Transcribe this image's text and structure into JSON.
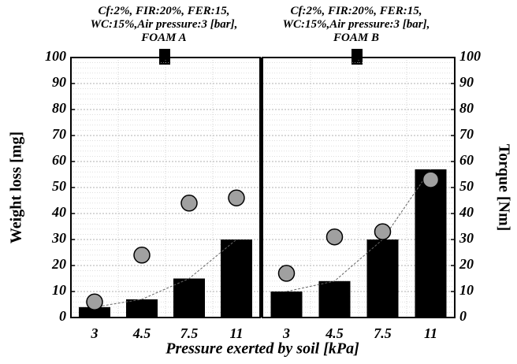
{
  "chart_data": [
    {
      "type": "bar",
      "title": "Cf:2%, FIR:20%, FER:15, WC:15%,Air pressure:3 [bar], FOAM A",
      "categories": [
        "3",
        "4.5",
        "7.5",
        "11"
      ],
      "series": [
        {
          "color": "#000000",
          "values": [
            4,
            7,
            15,
            30
          ]
        },
        {
          "color": "#a0a0a0",
          "marker": "circle",
          "values": [
            6,
            24,
            44,
            46
          ]
        }
      ],
      "ylim": [
        0,
        100
      ],
      "yticks": [
        0,
        10,
        20,
        30,
        40,
        50,
        60,
        70,
        80,
        90,
        100
      ],
      "grid": true,
      "ylabel": "Weight loss [mg]",
      "xlabel": "Pressure exerted by soil [kPa]"
    },
    {
      "type": "bar",
      "title": "Cf:2%, FIR:20%, FER:15, WC:15%,Air pressure:3 [bar], FOAM B",
      "categories": [
        "3",
        "4.5",
        "7.5",
        "11"
      ],
      "series": [
        {
          "color": "#000000",
          "values": [
            10,
            14,
            30,
            57
          ]
        },
        {
          "color": "#a0a0a0",
          "marker": "circle",
          "values": [
            17,
            31,
            33,
            53
          ]
        }
      ],
      "y2lim": [
        0,
        100
      ],
      "y2ticks": [
        0,
        10,
        20,
        30,
        40,
        50,
        60,
        70,
        80,
        90,
        100
      ],
      "grid": true,
      "y2label": "Torque [Nm]"
    }
  ]
}
